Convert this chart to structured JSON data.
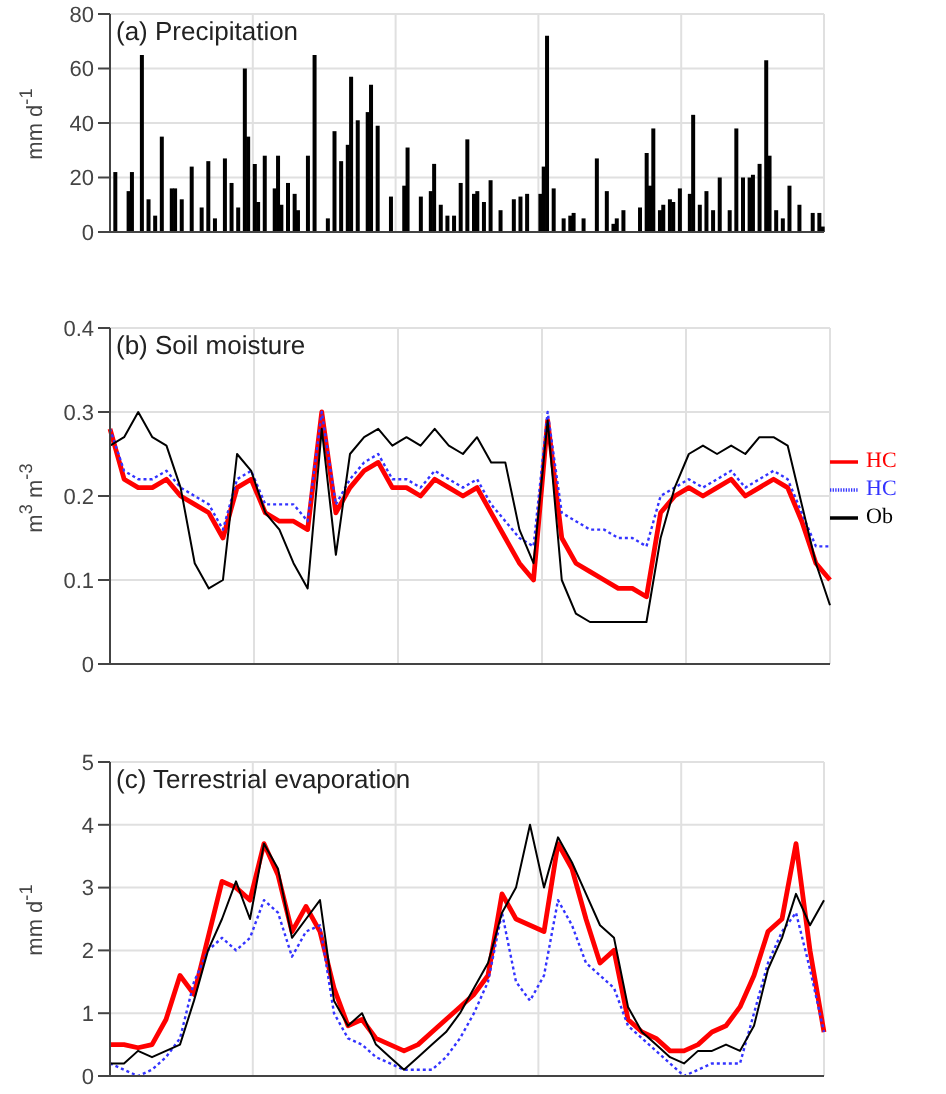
{
  "chart_data": [
    {
      "type": "bar",
      "title": "(a) Precipitation",
      "ylabel": "mm d$^{-1}$",
      "color": "#000000",
      "ylim": [
        0,
        80
      ],
      "yticks": [
        0,
        20,
        40,
        60,
        80
      ],
      "grid": true,
      "categories": [
        null,
        null,
        null,
        null,
        null,
        null,
        null,
        null,
        null,
        null,
        null,
        null,
        null,
        null,
        null,
        null,
        null,
        null,
        null,
        null,
        null,
        null,
        null,
        null,
        null,
        null,
        null,
        null,
        null,
        null,
        null,
        null,
        null,
        null,
        null,
        null,
        null,
        null,
        null,
        null,
        null,
        null,
        null,
        null,
        null,
        null,
        null,
        null,
        null,
        null,
        null,
        null,
        null,
        null,
        null,
        null,
        null,
        null,
        null,
        null,
        null,
        null,
        null,
        null,
        null,
        null,
        null,
        null,
        null,
        null,
        null,
        null,
        null,
        null,
        null,
        null,
        null,
        null,
        null,
        null,
        null,
        null,
        null,
        null,
        null,
        null,
        null,
        null,
        null,
        null,
        null,
        null,
        null,
        null,
        null,
        null,
        null,
        null,
        null,
        null,
        null,
        null,
        null,
        null,
        null,
        null,
        null,
        null,
        null,
        null,
        null,
        null,
        null,
        null,
        null,
        null,
        null,
        null,
        null,
        null,
        null,
        null,
        null,
        null,
        null,
        null,
        null,
        null,
        null,
        null,
        null,
        null,
        null,
        null,
        null,
        null,
        null,
        null,
        null,
        null,
        null,
        null,
        null,
        null,
        null,
        null,
        null,
        null,
        null,
        null,
        null,
        null,
        null,
        null,
        null,
        null,
        null,
        null,
        null,
        null,
        null,
        null,
        null,
        null,
        null,
        null,
        null,
        null,
        null,
        null,
        null,
        null,
        null,
        null,
        null,
        null,
        null,
        null,
        null,
        null,
        null,
        null,
        null,
        null,
        null,
        null,
        null,
        null,
        null,
        null,
        null,
        null,
        null,
        null,
        null,
        null,
        null,
        null,
        null,
        null,
        null,
        null,
        null,
        null,
        null,
        null,
        null,
        null,
        null,
        null,
        null,
        null,
        null,
        null,
        null
      ],
      "values": [
        0,
        22,
        0,
        0,
        0,
        15,
        22,
        0,
        0,
        65,
        0,
        12,
        0,
        6,
        0,
        35,
        0,
        0,
        16,
        16,
        0,
        12,
        0,
        0,
        24,
        0,
        0,
        9,
        0,
        26,
        0,
        5,
        0,
        0,
        27,
        0,
        18,
        0,
        9,
        0,
        60,
        35,
        0,
        25,
        11,
        0,
        28,
        0,
        0,
        16,
        28,
        10,
        0,
        18,
        0,
        14,
        8,
        0,
        0,
        28,
        0,
        65,
        0,
        0,
        0,
        5,
        0,
        37,
        0,
        26,
        0,
        32,
        57,
        0,
        41,
        0,
        0,
        44,
        54,
        0,
        39,
        0,
        0,
        0,
        13,
        0,
        0,
        0,
        17,
        31,
        0,
        0,
        0,
        13,
        0,
        0,
        15,
        25,
        0,
        10,
        0,
        6,
        0,
        6,
        0,
        18,
        0,
        34,
        0,
        14,
        15,
        0,
        11,
        0,
        19,
        0,
        0,
        8,
        0,
        0,
        0,
        12,
        0,
        13,
        0,
        14,
        0,
        0,
        0,
        14,
        24,
        72,
        0,
        16,
        0,
        0,
        5,
        0,
        6,
        7,
        0,
        0,
        5,
        0,
        0,
        0,
        27,
        0,
        0,
        15,
        0,
        3,
        5,
        0,
        8,
        0,
        0,
        0,
        0,
        9,
        0,
        29,
        17,
        38,
        0,
        8,
        10,
        0,
        12,
        11,
        0,
        16,
        0,
        0,
        14,
        43,
        0,
        10,
        0,
        15,
        0,
        8,
        0,
        20,
        0,
        0,
        8,
        0,
        38,
        0,
        20,
        0,
        20,
        21,
        0,
        25,
        0,
        63,
        28,
        0,
        8,
        0,
        5,
        0,
        17,
        0,
        0,
        10,
        0,
        0,
        0,
        7,
        0,
        7,
        2
      ]
    },
    {
      "type": "line",
      "title": "(b) Soil moisture",
      "ylabel": "m$^{3}$ m$^{-3}$",
      "ylim": [
        0,
        0.4
      ],
      "yticks": [
        0,
        0.1,
        0.2,
        0.3,
        0.4
      ],
      "grid": true,
      "legend": "right",
      "categories": [
        null,
        null,
        null,
        null,
        null,
        null,
        null,
        null,
        null,
        null,
        null,
        null,
        null,
        null,
        null,
        null,
        null,
        null,
        null,
        null,
        null,
        null,
        null,
        null,
        null,
        null,
        null,
        null,
        null,
        null,
        null,
        null,
        null,
        null,
        null,
        null,
        null,
        null,
        null,
        null,
        null,
        null,
        null,
        null,
        null,
        null,
        null,
        null,
        null,
        null,
        null,
        null
      ],
      "series": [
        {
          "name": "HC",
          "color": "#ff0000",
          "line_style": "solid",
          "values": [
            0.28,
            0.22,
            0.21,
            0.21,
            0.22,
            0.2,
            0.19,
            0.18,
            0.15,
            0.21,
            0.22,
            0.18,
            0.17,
            0.17,
            0.16,
            0.3,
            0.18,
            0.21,
            0.23,
            0.24,
            0.21,
            0.21,
            0.2,
            0.22,
            0.21,
            0.2,
            0.21,
            0.18,
            0.15,
            0.12,
            0.1,
            0.29,
            0.15,
            0.12,
            0.11,
            0.1,
            0.09,
            0.09,
            0.08,
            0.18,
            0.2,
            0.21,
            0.2,
            0.21,
            0.22,
            0.2,
            0.21,
            0.22,
            0.21,
            0.17,
            0.12,
            0.1
          ]
        },
        {
          "name": "HC",
          "color": "#3333ff",
          "line_style": "dotted",
          "values": [
            0.28,
            0.23,
            0.22,
            0.22,
            0.23,
            0.21,
            0.2,
            0.19,
            0.16,
            0.22,
            0.23,
            0.19,
            0.19,
            0.19,
            0.17,
            0.3,
            0.19,
            0.22,
            0.24,
            0.25,
            0.22,
            0.22,
            0.21,
            0.23,
            0.22,
            0.21,
            0.22,
            0.19,
            0.17,
            0.15,
            0.14,
            0.3,
            0.18,
            0.17,
            0.16,
            0.16,
            0.15,
            0.15,
            0.14,
            0.2,
            0.21,
            0.22,
            0.21,
            0.22,
            0.23,
            0.21,
            0.22,
            0.23,
            0.22,
            0.18,
            0.14,
            0.14
          ]
        },
        {
          "name": "Ob",
          "color": "#000000",
          "line_style": "solid",
          "values": [
            0.26,
            0.27,
            0.3,
            0.27,
            0.26,
            0.21,
            0.12,
            0.09,
            0.1,
            0.25,
            0.23,
            0.18,
            0.16,
            0.12,
            0.09,
            0.28,
            0.13,
            0.25,
            0.27,
            0.28,
            0.26,
            0.27,
            0.26,
            0.28,
            0.26,
            0.25,
            0.27,
            0.24,
            0.24,
            0.16,
            0.12,
            0.29,
            0.1,
            0.06,
            0.05,
            0.05,
            0.05,
            0.05,
            0.05,
            0.15,
            0.21,
            0.25,
            0.26,
            0.25,
            0.26,
            0.25,
            0.27,
            0.27,
            0.26,
            0.19,
            0.12,
            0.07
          ]
        }
      ]
    },
    {
      "type": "line",
      "title": "(c) Terrestrial evaporation",
      "ylabel": "mm d$^{-1}$",
      "ylim": [
        0,
        5
      ],
      "yticks": [
        0,
        1,
        2,
        3,
        4,
        5
      ],
      "grid": true,
      "categories": [
        null,
        null,
        null,
        null,
        null,
        null,
        null,
        null,
        null,
        null,
        null,
        null,
        null,
        null,
        null,
        null,
        null,
        null,
        null,
        null,
        null,
        null,
        null,
        null,
        null,
        null,
        null,
        null,
        null,
        null,
        null,
        null,
        null,
        null,
        null,
        null,
        null,
        null,
        null,
        null,
        null,
        null,
        null,
        null,
        null,
        null,
        null,
        null,
        null,
        null,
        null,
        null
      ],
      "series": [
        {
          "color": "#ff0000",
          "line_style": "solid",
          "values": [
            0.5,
            0.5,
            0.45,
            0.5,
            0.9,
            1.6,
            1.3,
            2.2,
            3.1,
            3.0,
            2.8,
            3.7,
            3.2,
            2.3,
            2.7,
            2.3,
            1.4,
            0.8,
            0.9,
            0.6,
            0.5,
            0.4,
            0.5,
            0.7,
            0.9,
            1.1,
            1.3,
            1.6,
            2.9,
            2.5,
            2.4,
            2.3,
            3.7,
            3.3,
            2.5,
            1.8,
            2.0,
            0.9,
            0.7,
            0.6,
            0.4,
            0.4,
            0.5,
            0.7,
            0.8,
            1.1,
            1.6,
            2.3,
            2.5,
            3.7,
            2.0,
            0.7
          ]
        },
        {
          "color": "#3333ff",
          "line_style": "dotted",
          "values": [
            0.2,
            0.1,
            0.0,
            0.1,
            0.3,
            0.6,
            1.5,
            2.0,
            2.2,
            2.0,
            2.2,
            2.8,
            2.6,
            1.9,
            2.3,
            2.4,
            1.0,
            0.6,
            0.5,
            0.3,
            0.2,
            0.1,
            0.1,
            0.1,
            0.3,
            0.6,
            1.0,
            1.5,
            2.6,
            1.5,
            1.2,
            1.6,
            2.8,
            2.4,
            1.8,
            1.6,
            1.4,
            0.8,
            0.6,
            0.4,
            0.2,
            0.0,
            0.1,
            0.2,
            0.2,
            0.2,
            1.0,
            1.8,
            2.3,
            2.6,
            1.7,
            0.7
          ]
        },
        {
          "color": "#000000",
          "line_style": "solid",
          "values": [
            0.2,
            0.2,
            0.4,
            0.3,
            0.4,
            0.5,
            1.2,
            2.0,
            2.5,
            3.1,
            2.5,
            3.7,
            3.3,
            2.2,
            2.5,
            2.8,
            1.2,
            0.8,
            1.0,
            0.5,
            0.3,
            0.1,
            0.3,
            0.5,
            0.7,
            1.0,
            1.4,
            1.8,
            2.6,
            3.0,
            4.0,
            3.0,
            3.8,
            3.4,
            2.9,
            2.4,
            2.2,
            1.1,
            0.7,
            0.5,
            0.3,
            0.2,
            0.4,
            0.4,
            0.5,
            0.4,
            0.8,
            1.7,
            2.2,
            2.9,
            2.4,
            2.8
          ]
        }
      ]
    }
  ]
}
